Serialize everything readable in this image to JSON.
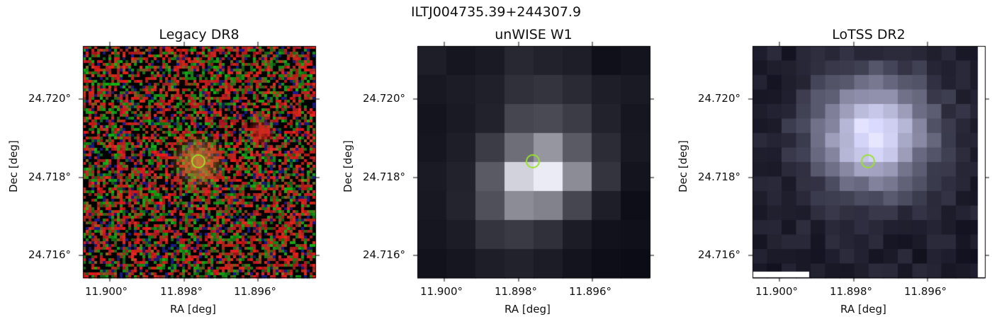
{
  "figure": {
    "suptitle": "ILTJ004735.39+244307.9"
  },
  "panels": [
    {
      "title": "Legacy DR8",
      "style": "rgb-noise",
      "xlabel": "RA [deg]",
      "ylabel": "Dec [deg]",
      "xticks": [
        "11.900°",
        "11.898°",
        "11.896°"
      ],
      "yticks": [
        "24.720°",
        "24.718°",
        "24.716°"
      ]
    },
    {
      "title": "unWISE W1",
      "style": "coarse-grey",
      "xlabel": "RA [deg]",
      "ylabel": "Dec [deg]",
      "xticks": [
        "11.900°",
        "11.898°",
        "11.896°"
      ],
      "yticks": [
        "24.720°",
        "24.718°",
        "24.716°"
      ]
    },
    {
      "title": "LoTSS DR2",
      "style": "fine-grey",
      "xlabel": "RA [deg]",
      "ylabel": "Dec [deg]",
      "xticks": [
        "11.900°",
        "11.898°",
        "11.896°"
      ],
      "yticks": [
        "24.720°",
        "24.718°",
        "24.716°"
      ]
    }
  ],
  "marker": {
    "shape": "circle",
    "color": "#9be22a"
  }
}
